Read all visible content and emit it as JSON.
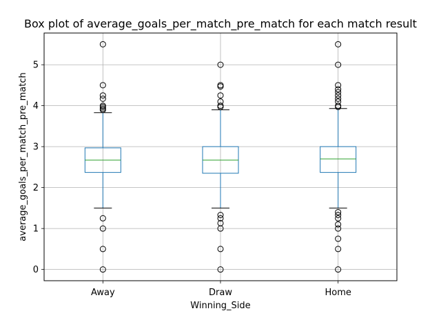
{
  "chart_data": {
    "type": "box",
    "title": "Box plot of average_goals_per_match_pre_match for each match result",
    "xlabel": "Winning_Side",
    "ylabel": "average_goals_per_match_pre_match",
    "categories": [
      "Away",
      "Draw",
      "Home"
    ],
    "ylim": [
      -0.275,
      5.775
    ],
    "yticks": [
      0,
      1,
      2,
      3,
      4,
      5
    ],
    "grid": true,
    "colors": {
      "box": "#1f77b4",
      "median": "#2ca02c",
      "whisker": "#1f77b4",
      "cap": "#000000",
      "flier": "#000000",
      "grid": "#b0b0b0"
    },
    "series": [
      {
        "category": "Away",
        "q1": 2.37,
        "median": 2.67,
        "q3": 2.97,
        "whisker_low": 1.5,
        "whisker_high": 3.83,
        "outliers": [
          5.5,
          4.5,
          4.25,
          4.17,
          4.0,
          3.97,
          3.93,
          3.9,
          1.25,
          1.0,
          0.5,
          0.0
        ]
      },
      {
        "category": "Draw",
        "q1": 2.35,
        "median": 2.67,
        "q3": 3.0,
        "whisker_low": 1.5,
        "whisker_high": 3.9,
        "outliers": [
          5.0,
          4.5,
          4.47,
          4.25,
          4.1,
          4.0,
          3.97,
          1.33,
          1.25,
          1.13,
          1.0,
          0.5,
          0.0
        ]
      },
      {
        "category": "Home",
        "q1": 2.37,
        "median": 2.7,
        "q3": 3.0,
        "whisker_low": 1.5,
        "whisker_high": 3.93,
        "outliers": [
          5.5,
          5.0,
          4.5,
          4.4,
          4.33,
          4.25,
          4.17,
          4.1,
          4.0,
          3.97,
          1.4,
          1.33,
          1.25,
          1.1,
          1.0,
          0.75,
          0.5,
          0.0
        ]
      }
    ]
  }
}
